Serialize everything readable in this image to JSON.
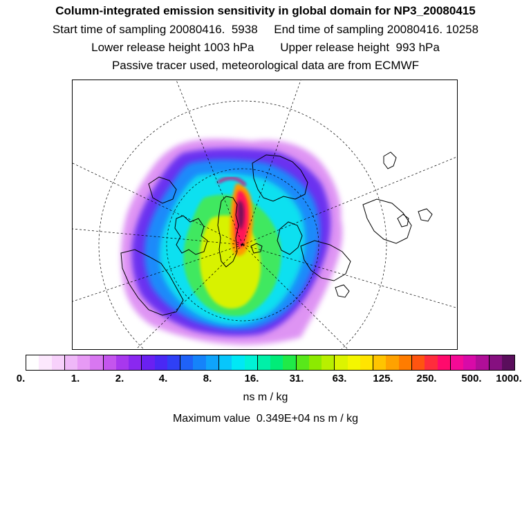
{
  "header": {
    "title": "Column-integrated emission sensitivity in global domain for NP3_20080415",
    "sampling_line": "Start time of sampling 20080416.  5938     End time of sampling 20080416. 10258",
    "release_line": "Lower release height 1003 hPa        Upper release height  993 hPa",
    "tracer_line": "Passive tracer used, meteorological data are from ECMWF"
  },
  "colorbar": {
    "colors": [
      "#ffffff",
      "#fce8fd",
      "#f7d1fb",
      "#efb8f8",
      "#e79af5",
      "#d877f1",
      "#c455ee",
      "#a838ee",
      "#8a28f0",
      "#6a20f2",
      "#4a28f4",
      "#2f40f6",
      "#1f62f8",
      "#1583fa",
      "#0fa4fb",
      "#08c6fb",
      "#00e8f5",
      "#00f2d6",
      "#00f0a8",
      "#00ec78",
      "#20ea48",
      "#58e81a",
      "#8cea00",
      "#b8ef00",
      "#dcf400",
      "#f4f600",
      "#ffe400",
      "#ffc400",
      "#ffa200",
      "#ff7c00",
      "#ff5410",
      "#ff2c3c",
      "#ff0a6c",
      "#f40a96",
      "#d80aa8",
      "#b00e98",
      "#861080",
      "#5a0e5c"
    ],
    "tick_labels": [
      "0.",
      "1.",
      "2.",
      "4.",
      "8.",
      "16.",
      "31.",
      "63.",
      "125.",
      "250.",
      "500.",
      "1000."
    ],
    "units": "ns m / kg"
  },
  "footer": {
    "max_value_text": "Maximum value  0.349E+04 ns m / kg"
  }
}
